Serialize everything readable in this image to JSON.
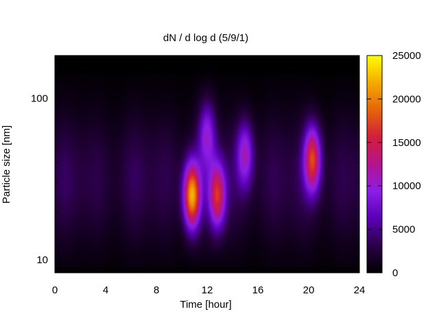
{
  "chart_data": {
    "type": "heatmap",
    "title": "dN / d log d (5/9/1)",
    "xlabel": "Time [hour]",
    "ylabel": "Particle size [nm]",
    "xlim": [
      0,
      24
    ],
    "x_ticks": [
      0,
      4,
      8,
      12,
      16,
      20,
      24
    ],
    "y_scale": "log",
    "ylim": [
      8.3,
      184
    ],
    "y_ticks": [
      10,
      100
    ],
    "colorbar": {
      "range": [
        0,
        25000
      ],
      "ticks": [
        0,
        5000,
        10000,
        15000,
        20000,
        25000
      ],
      "colormap": [
        "#000000",
        "#2a0046",
        "#5a00b4",
        "#8a1ee6",
        "#b4148c",
        "#d21e3c",
        "#e6640a",
        "#f5aa00",
        "#ffff00"
      ]
    },
    "grid": false,
    "intensity_regions": [
      {
        "t_hour": 10.8,
        "d_nm": 25,
        "value": 20000
      },
      {
        "t_hour": 12.8,
        "d_nm": 25,
        "value": 14000
      },
      {
        "t_hour": 20.3,
        "d_nm": 42,
        "value": 15000
      },
      {
        "t_hour": 15.0,
        "d_nm": 45,
        "value": 9000
      },
      {
        "t_hour": 12.0,
        "d_nm": 60,
        "value": 8000
      }
    ]
  }
}
